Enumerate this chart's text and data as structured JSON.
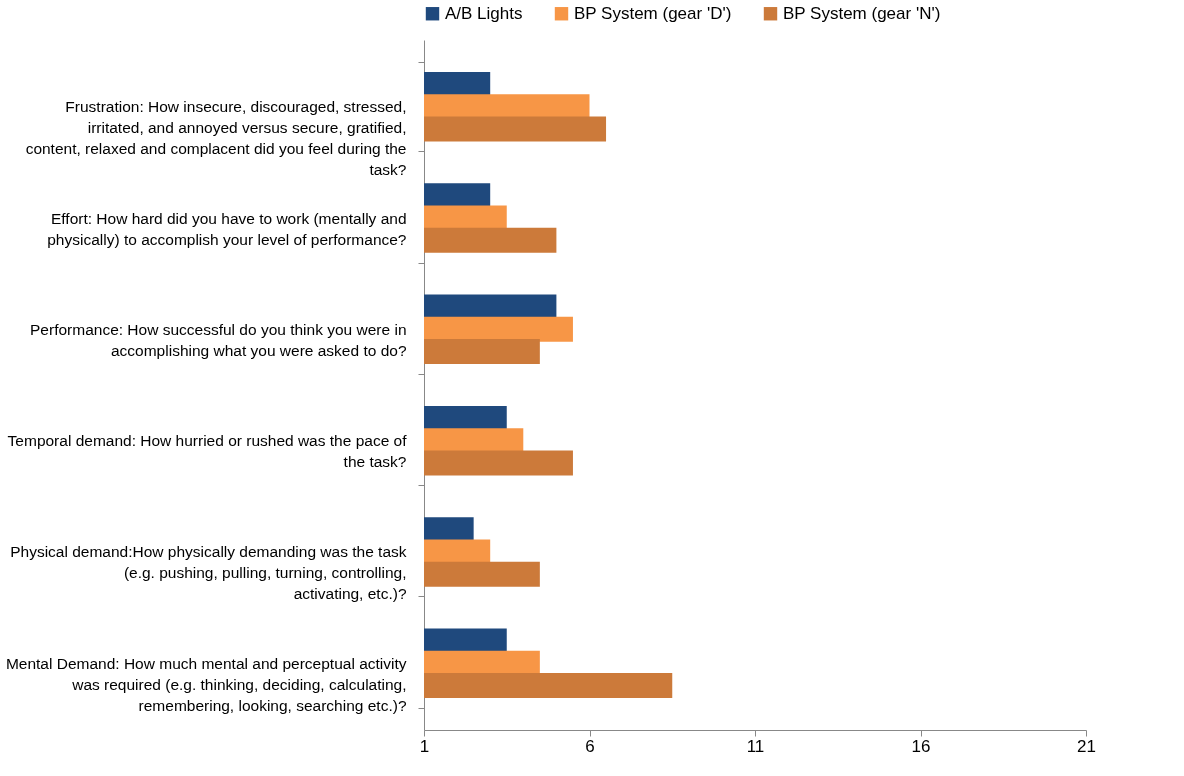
{
  "chart_data": {
    "type": "bar",
    "orientation": "horizontal",
    "categories": [
      "Frustration: How insecure, discouraged, stressed, irritated, and annoyed versus secure, gratified, content, relaxed and complacent did you feel during the task?",
      "Effort: How hard did you have to work (mentally and physically) to accomplish your level of performance?",
      "Performance: How successful do you think you were in accomplishing what you were asked to do?",
      "Temporal demand: How hurried or rushed was the pace of the task?",
      "Physical demand:How physically demanding was the task (e.g. pushing, pulling, turning, controlling, activating, etc.)?",
      "Mental Demand: How much mental and perceptual activity was required (e.g. thinking, deciding, calculating, remembering, looking, searching etc.)?"
    ],
    "series": [
      {
        "name": "A/B Lights",
        "color": "#1f497d",
        "values": [
          3,
          3,
          5,
          3.5,
          2.5,
          3.5
        ]
      },
      {
        "name": "BP System (gear 'D')",
        "color": "#f79646",
        "values": [
          6,
          3.5,
          5.5,
          4,
          3,
          4.5
        ]
      },
      {
        "name": "BP System (gear 'N')",
        "color": "#cc7a3a",
        "values": [
          6.5,
          5,
          4.5,
          5.5,
          4.5,
          8.5
        ]
      }
    ],
    "xlim": [
      1,
      21
    ],
    "xticks": [
      1,
      6,
      11,
      16,
      21
    ],
    "grid": false,
    "legend": "top"
  }
}
